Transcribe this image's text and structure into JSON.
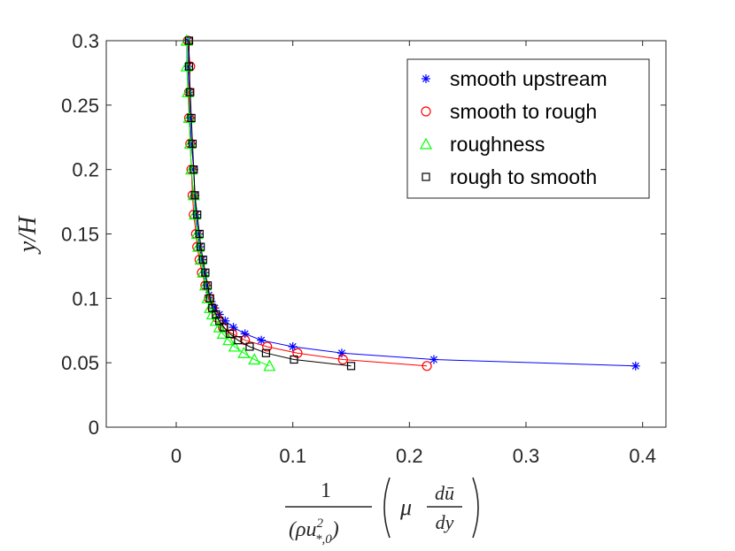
{
  "chart_data": {
    "type": "line",
    "title": "",
    "ylabel": "y/H",
    "xlabel": {
      "numerator": "1",
      "denominator_base": "(ρu",
      "denominator_sup": "2",
      "denominator_sub": "*,0",
      "denominator_close": ")",
      "paren_content_mu": "μ",
      "deriv_num": "dū",
      "deriv_den": "dy"
    },
    "xlim": [
      -0.06,
      0.42
    ],
    "ylim": [
      0,
      0.3
    ],
    "xticks": [
      0,
      0.1,
      0.2,
      0.3,
      0.4
    ],
    "xtick_labels": [
      "0",
      "0.1",
      "0.2",
      "0.3",
      "0.4"
    ],
    "yticks": [
      0,
      0.05,
      0.1,
      0.15,
      0.2,
      0.25,
      0.3
    ],
    "ytick_labels": [
      "0",
      "0.05",
      "0.1",
      "0.15",
      "0.2",
      "0.25",
      "0.3"
    ],
    "legend_position": "top-right",
    "series": [
      {
        "name": "smooth upstream",
        "color": "#0000ff",
        "marker": "asterisk",
        "points": [
          [
            0.394,
            0.0475
          ],
          [
            0.221,
            0.0525
          ],
          [
            0.142,
            0.0575
          ],
          [
            0.1,
            0.0625
          ],
          [
            0.073,
            0.0675
          ],
          [
            0.059,
            0.0725
          ],
          [
            0.049,
            0.0775
          ],
          [
            0.042,
            0.0825
          ],
          [
            0.037,
            0.0875
          ],
          [
            0.033,
            0.0925
          ],
          [
            0.03,
            0.0975
          ],
          [
            0.028,
            0.1025
          ],
          [
            0.026,
            0.11
          ],
          [
            0.024,
            0.12
          ],
          [
            0.022,
            0.13
          ],
          [
            0.02,
            0.14
          ],
          [
            0.019,
            0.15
          ],
          [
            0.017,
            0.165
          ],
          [
            0.016,
            0.18
          ],
          [
            0.015,
            0.2
          ],
          [
            0.013,
            0.22
          ],
          [
            0.012,
            0.24
          ],
          [
            0.011,
            0.26
          ],
          [
            0.01,
            0.28
          ],
          [
            0.01,
            0.3
          ]
        ]
      },
      {
        "name": "smooth to rough",
        "color": "#ff0000",
        "marker": "circle",
        "points": [
          [
            0.215,
            0.0475
          ],
          [
            0.143,
            0.0525
          ],
          [
            0.104,
            0.0575
          ],
          [
            0.078,
            0.0625
          ],
          [
            0.059,
            0.0675
          ],
          [
            0.048,
            0.0725
          ],
          [
            0.04,
            0.0775
          ],
          [
            0.035,
            0.085
          ],
          [
            0.031,
            0.0925
          ],
          [
            0.028,
            0.1
          ],
          [
            0.025,
            0.11
          ],
          [
            0.022,
            0.12
          ],
          [
            0.02,
            0.13
          ],
          [
            0.018,
            0.14
          ],
          [
            0.017,
            0.15
          ],
          [
            0.015,
            0.165
          ],
          [
            0.014,
            0.18
          ],
          [
            0.013,
            0.2
          ],
          [
            0.012,
            0.22
          ],
          [
            0.011,
            0.24
          ],
          [
            0.011,
            0.26
          ],
          [
            0.012,
            0.28
          ],
          [
            0.01,
            0.3
          ]
        ]
      },
      {
        "name": "roughness",
        "color": "#00ff00",
        "marker": "triangle",
        "points": [
          [
            0.08,
            0.0475
          ],
          [
            0.067,
            0.0525
          ],
          [
            0.058,
            0.0575
          ],
          [
            0.05,
            0.0625
          ],
          [
            0.045,
            0.0675
          ],
          [
            0.04,
            0.0725
          ],
          [
            0.037,
            0.0775
          ],
          [
            0.034,
            0.0825
          ],
          [
            0.031,
            0.0875
          ],
          [
            0.029,
            0.0925
          ],
          [
            0.027,
            0.1
          ],
          [
            0.025,
            0.11
          ],
          [
            0.023,
            0.12
          ],
          [
            0.021,
            0.13
          ],
          [
            0.019,
            0.14
          ],
          [
            0.018,
            0.15
          ],
          [
            0.016,
            0.165
          ],
          [
            0.015,
            0.18
          ],
          [
            0.013,
            0.2
          ],
          [
            0.012,
            0.22
          ],
          [
            0.011,
            0.24
          ],
          [
            0.01,
            0.26
          ],
          [
            0.009,
            0.28
          ],
          [
            0.009,
            0.3
          ]
        ]
      },
      {
        "name": "rough to smooth",
        "color": "#000000",
        "marker": "square",
        "points": [
          [
            0.15,
            0.0475
          ],
          [
            0.101,
            0.0525
          ],
          [
            0.077,
            0.0575
          ],
          [
            0.063,
            0.0625
          ],
          [
            0.053,
            0.0675
          ],
          [
            0.046,
            0.0725
          ],
          [
            0.041,
            0.0775
          ],
          [
            0.037,
            0.0825
          ],
          [
            0.034,
            0.0875
          ],
          [
            0.031,
            0.0925
          ],
          [
            0.029,
            0.1
          ],
          [
            0.027,
            0.11
          ],
          [
            0.025,
            0.12
          ],
          [
            0.023,
            0.13
          ],
          [
            0.021,
            0.14
          ],
          [
            0.02,
            0.15
          ],
          [
            0.018,
            0.165
          ],
          [
            0.016,
            0.18
          ],
          [
            0.015,
            0.2
          ],
          [
            0.014,
            0.22
          ],
          [
            0.013,
            0.24
          ],
          [
            0.012,
            0.26
          ],
          [
            0.011,
            0.28
          ],
          [
            0.011,
            0.3
          ]
        ]
      }
    ]
  }
}
